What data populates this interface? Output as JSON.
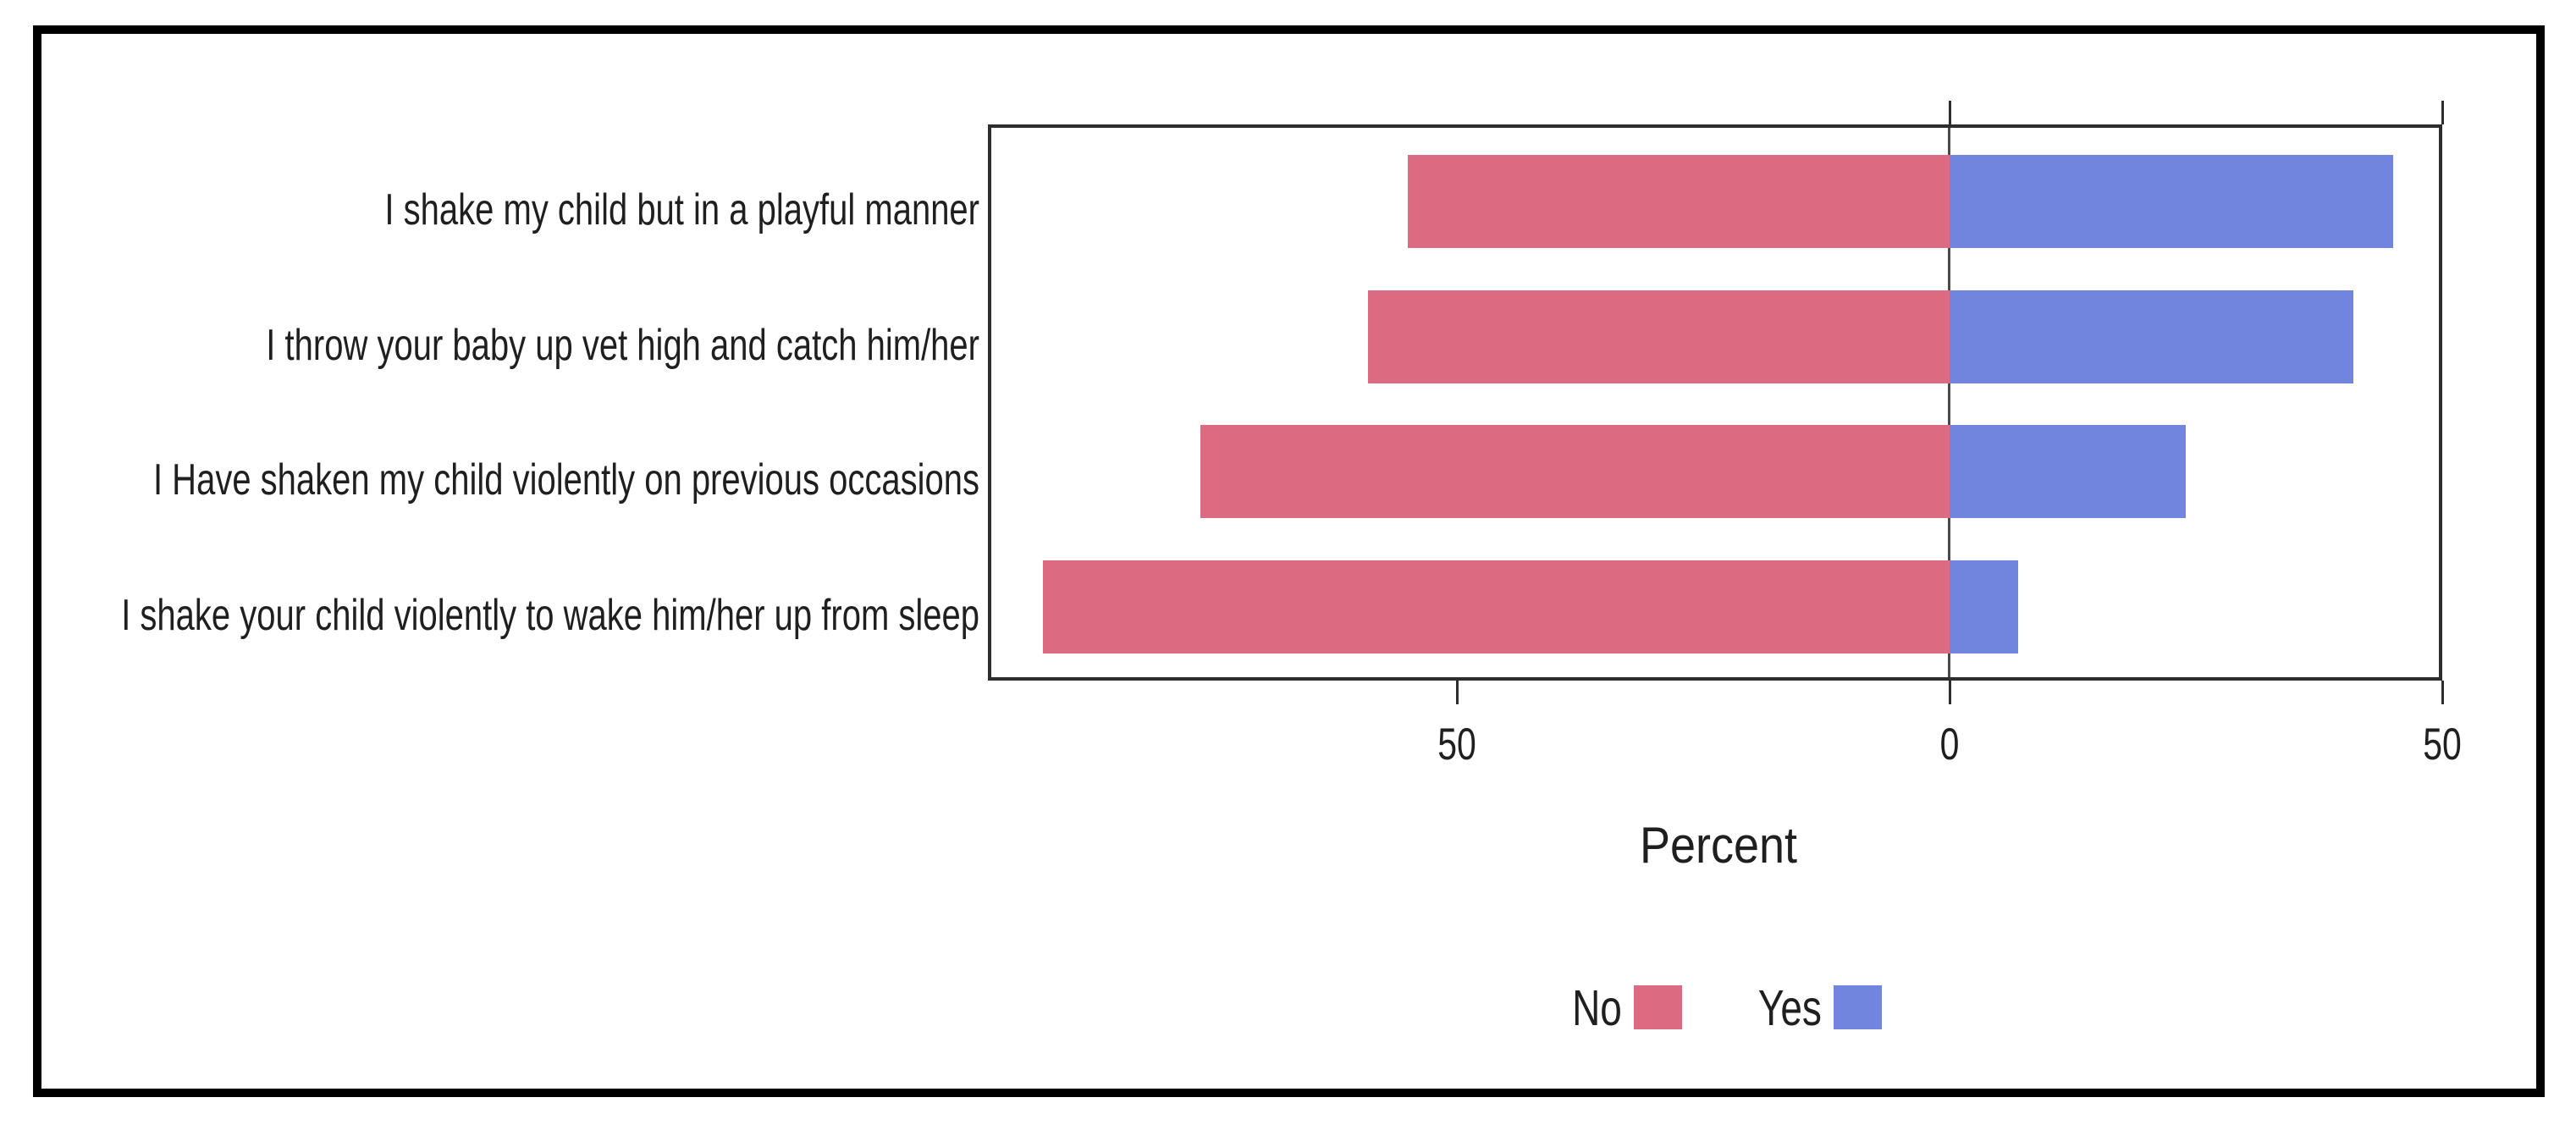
{
  "chart_data": {
    "type": "bar",
    "variant": "horizontal-diverging",
    "title": "",
    "xlabel": "Percent",
    "ylabel": "",
    "categories": [
      "I shake my child but in a playful manner",
      "I throw your baby up vet high and catch him/her",
      "I Have shaken my child violently on previous occasions",
      "I shake your child violently to wake him/her up from sleep"
    ],
    "series": [
      {
        "name": "No",
        "color": "#dc6b82",
        "side": "left",
        "values": [
          55,
          59,
          76,
          92
        ]
      },
      {
        "name": "Yes",
        "color": "#7285de",
        "side": "right",
        "values": [
          45,
          41,
          24,
          7
        ]
      }
    ],
    "x_axis": {
      "tick_values": [
        -50,
        0,
        50
      ],
      "tick_labels": [
        "50",
        "0",
        "50"
      ],
      "top_tick_values": [
        0,
        50
      ],
      "xlim": [
        -97.5,
        50
      ],
      "unit": "percent"
    },
    "legend": {
      "position": "bottom",
      "entries": [
        "No",
        "Yes"
      ]
    },
    "grid": false,
    "zero_line": true
  },
  "colors": {
    "no": "#dc6b82",
    "yes": "#7285de",
    "axis": "#2d2d2d",
    "text": "#1f1f1f",
    "frame": "#000000",
    "background": "#ffffff"
  }
}
